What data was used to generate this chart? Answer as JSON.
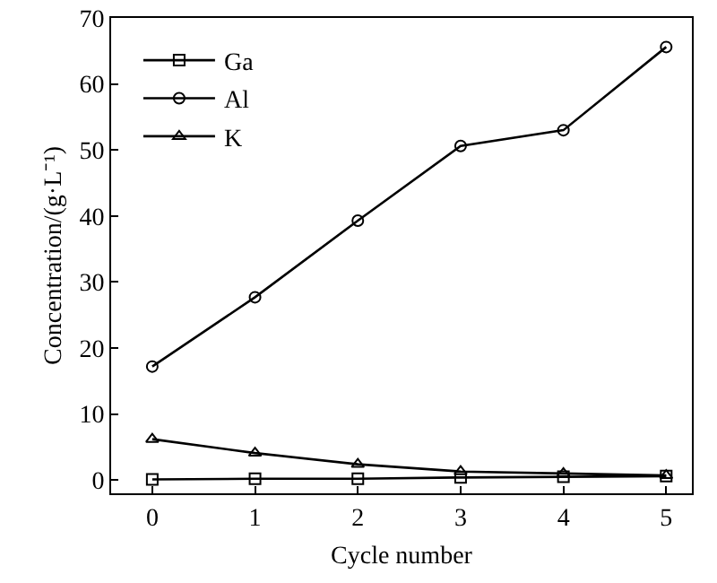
{
  "chart_data": {
    "type": "line",
    "xlabel": "Cycle number",
    "ylabel": "Concentration/(g·L⁻¹)",
    "x": [
      0,
      1,
      2,
      3,
      4,
      5
    ],
    "series": [
      {
        "name": "Ga",
        "color": "#000000",
        "marker": "square",
        "values": [
          0.1,
          0.2,
          0.2,
          0.4,
          0.5,
          0.6
        ]
      },
      {
        "name": "Al",
        "color": "#000000",
        "marker": "circle",
        "values": [
          17.2,
          27.7,
          39.3,
          50.6,
          53.0,
          65.6
        ]
      },
      {
        "name": "K",
        "color": "#000000",
        "marker": "triangle",
        "values": [
          6.2,
          4.1,
          2.4,
          1.3,
          1.0,
          0.7
        ]
      }
    ],
    "xlim": [
      -0.4,
      5.25
    ],
    "xticks": [
      0,
      1,
      2,
      3,
      4,
      5
    ],
    "ylim": [
      -2,
      70
    ],
    "yticks": [
      0,
      10,
      20,
      30,
      40,
      50,
      60,
      70
    ],
    "grid": false,
    "legend": "top left",
    "line_style": "solid"
  }
}
